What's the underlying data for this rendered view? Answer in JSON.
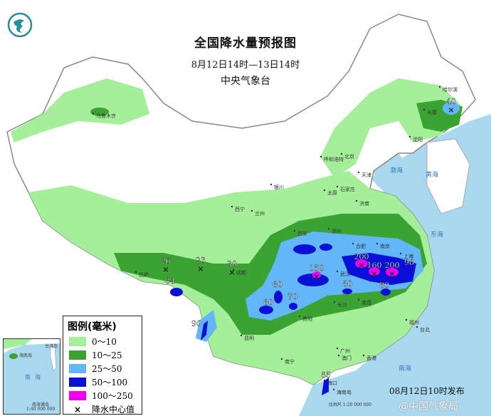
{
  "header": {
    "title": "全国降水量预报图",
    "period": "8月12日14时—13日14时",
    "issuer": "中央气象台"
  },
  "legend": {
    "title": "图例(毫米)",
    "items": [
      {
        "label": "0～10",
        "color": "#a6ef9a"
      },
      {
        "label": "10～25",
        "color": "#3aa332"
      },
      {
        "label": "25～50",
        "color": "#63b6f7"
      },
      {
        "label": "50～100",
        "color": "#0a10d8"
      },
      {
        "label": "100～250",
        "color": "#f000f0"
      }
    ],
    "center_marker": {
      "symbol": "×",
      "label": "降水中心值"
    }
  },
  "precip_centers": [
    {
      "value": "40",
      "place": "northeast"
    },
    {
      "value": "26",
      "place": "tibet-west"
    },
    {
      "value": "23",
      "place": "tibet-mid"
    },
    {
      "value": "30",
      "place": "tibet-east"
    },
    {
      "value": "84",
      "place": "tibet-south"
    },
    {
      "value": "90",
      "place": "yunnan-west"
    },
    {
      "value": "150",
      "place": "hubei-west"
    },
    {
      "value": "200",
      "place": "anhui-west"
    },
    {
      "value": "160",
      "place": "anhui-south"
    },
    {
      "value": "200",
      "place": "anhui-east"
    },
    {
      "value": "98",
      "place": "zhejiang-north"
    },
    {
      "value": "80",
      "place": "hunan-north"
    },
    {
      "value": "80",
      "place": "jiangxi"
    },
    {
      "value": "80",
      "place": "sichuan-east"
    },
    {
      "value": "70",
      "place": "guizhou-north"
    },
    {
      "value": "80",
      "place": "guizhou-west"
    },
    {
      "value": "85",
      "place": "hainan"
    }
  ],
  "cities": [
    "乌鲁木齐",
    "哈尔滨",
    "长春",
    "沈阳",
    "呼和浩特",
    "北京",
    "天津",
    "石家庄",
    "太原",
    "济南",
    "银川",
    "西宁",
    "兰州",
    "西安",
    "郑州",
    "合肥",
    "南京",
    "上海",
    "武汉",
    "成都",
    "贵阳",
    "长沙",
    "南昌",
    "福州",
    "台北",
    "昆明",
    "南宁",
    "广州",
    "香港",
    "澳门",
    "海口",
    "拉萨",
    "海南岛"
  ],
  "seas": [
    "渤海",
    "黄海",
    "东海",
    "南海"
  ],
  "inset": {
    "sea": "南海",
    "label": "南海诸岛",
    "scale": "1:40 000 000",
    "island": "海南岛",
    "city": "台湾岛"
  },
  "scale_text": "比例尺 1:20 000 000",
  "publish": "08月12日10时发布",
  "watermark": "@中国气象局",
  "colors": {
    "sea": "#a9d8ef",
    "land": "#ffffff",
    "border": "#888888"
  }
}
